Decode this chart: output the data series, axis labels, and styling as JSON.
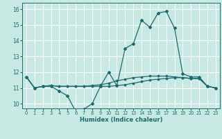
{
  "title": "",
  "xlabel": "Humidex (Indice chaleur)",
  "ylabel": "",
  "xlim": [
    -0.5,
    23.5
  ],
  "ylim": [
    9.7,
    16.4
  ],
  "yticks": [
    10,
    11,
    12,
    13,
    14,
    15,
    16
  ],
  "xticks": [
    0,
    1,
    2,
    3,
    4,
    5,
    6,
    7,
    8,
    9,
    10,
    11,
    12,
    13,
    14,
    15,
    16,
    17,
    18,
    19,
    20,
    21,
    22,
    23
  ],
  "background_color": "#c8e8e4",
  "grid_color": "#ffffff",
  "line_color": "#1a6b6b",
  "line1": [
    11.7,
    11.0,
    11.1,
    11.1,
    10.8,
    10.5,
    9.5,
    9.65,
    10.0,
    11.1,
    12.0,
    11.15,
    13.5,
    13.8,
    15.3,
    14.85,
    15.75,
    15.85,
    14.8,
    11.9,
    11.7,
    11.7,
    11.1,
    11.0
  ],
  "line2": [
    11.7,
    11.0,
    11.1,
    11.15,
    11.1,
    11.1,
    11.1,
    11.1,
    11.1,
    11.1,
    11.1,
    11.15,
    11.2,
    11.3,
    11.4,
    11.5,
    11.55,
    11.6,
    11.65,
    11.65,
    11.6,
    11.6,
    11.1,
    11.0
  ],
  "line3": [
    11.7,
    11.0,
    11.1,
    11.15,
    11.1,
    11.1,
    11.1,
    11.1,
    11.15,
    11.2,
    11.3,
    11.45,
    11.55,
    11.65,
    11.7,
    11.75,
    11.75,
    11.75,
    11.7,
    11.65,
    11.6,
    11.6,
    11.1,
    11.0
  ]
}
